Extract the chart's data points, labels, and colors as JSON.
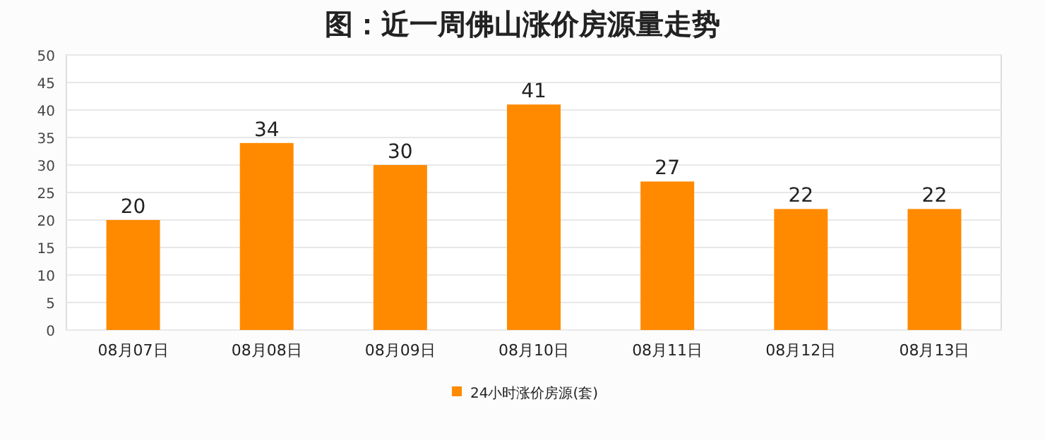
{
  "chart_data": {
    "type": "bar",
    "title": "图：近一周佛山涨价房源量走势",
    "categories": [
      "08月07日",
      "08月08日",
      "08月09日",
      "08月10日",
      "08月11日",
      "08月12日",
      "08月13日"
    ],
    "series": [
      {
        "name": "24小时涨价房源(套)",
        "color": "#ff8a00",
        "values": [
          20,
          34,
          30,
          41,
          27,
          22,
          22
        ]
      }
    ],
    "ylim": [
      0,
      50
    ],
    "yticks": [
      0,
      5,
      10,
      15,
      20,
      25,
      30,
      35,
      40,
      45,
      50
    ],
    "grid": "y",
    "legend": "bottom",
    "data_labels": true
  }
}
